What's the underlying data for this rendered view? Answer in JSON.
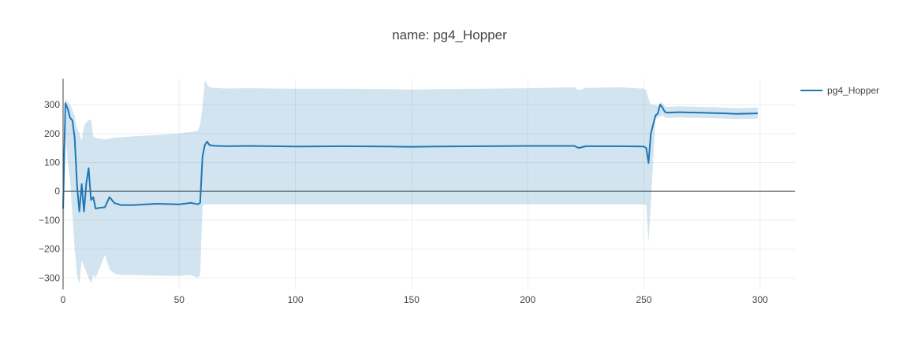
{
  "chart_data": {
    "type": "line",
    "title": "name: pg4_Hopper",
    "xlabel": "",
    "ylabel": "",
    "xlim": [
      0,
      315
    ],
    "ylim": [
      -340,
      390
    ],
    "xticks": [
      0,
      50,
      100,
      150,
      200,
      250,
      300
    ],
    "yticks": [
      -300,
      -200,
      -100,
      0,
      100,
      200,
      300
    ],
    "grid": true,
    "legend_position": "top-right",
    "colors": {
      "line": "#1f77b4",
      "band": "#1f77b4",
      "zero_line": "#444444"
    },
    "series": [
      {
        "name": "pg4_Hopper",
        "x": [
          0,
          1,
          2,
          3,
          4,
          5,
          6,
          7,
          8,
          9,
          10,
          11,
          12,
          13,
          14,
          15,
          18,
          20,
          22,
          25,
          30,
          40,
          50,
          55,
          58,
          59,
          60,
          61,
          62,
          63,
          65,
          70,
          80,
          90,
          100,
          120,
          140,
          150,
          160,
          180,
          200,
          220,
          222,
          225,
          240,
          250,
          251,
          252,
          253,
          255,
          256,
          257,
          258,
          259,
          260,
          265,
          270,
          275,
          280,
          285,
          290,
          295,
          299
        ],
        "y": [
          -60,
          305,
          285,
          255,
          245,
          185,
          20,
          -70,
          25,
          -70,
          30,
          80,
          -30,
          -20,
          -60,
          -58,
          -55,
          -20,
          -40,
          -48,
          -48,
          -43,
          -45,
          -40,
          -45,
          -40,
          120,
          160,
          172,
          160,
          158,
          156,
          157,
          156,
          155,
          156,
          155,
          154,
          155,
          156,
          157,
          157,
          150,
          156,
          156,
          155,
          150,
          98,
          200,
          262,
          270,
          300,
          290,
          275,
          272,
          274,
          273,
          272,
          271,
          270,
          268,
          269,
          270
        ],
        "upper": [
          60,
          320,
          310,
          300,
          280,
          260,
          220,
          200,
          175,
          225,
          240,
          245,
          250,
          190,
          185,
          183,
          180,
          182,
          185,
          188,
          190,
          195,
          200,
          205,
          210,
          230,
          290,
          385,
          370,
          360,
          358,
          356,
          357,
          356,
          355,
          355,
          354,
          352,
          354,
          355,
          357,
          360,
          350,
          358,
          360,
          355,
          350,
          320,
          300,
          300,
          295,
          310,
          305,
          295,
          292,
          294,
          293,
          292,
          291,
          290,
          288,
          289,
          290
        ],
        "lower": [
          -340,
          200,
          100,
          40,
          -80,
          -200,
          -290,
          -320,
          -240,
          -260,
          -280,
          -300,
          -320,
          -290,
          -300,
          -280,
          -220,
          -270,
          -285,
          -290,
          -290,
          -292,
          -293,
          -290,
          -300,
          -290,
          -50,
          -45,
          -45,
          -45,
          -45,
          -45,
          -45,
          -45,
          -45,
          -45,
          -45,
          -45,
          -45,
          -45,
          -45,
          -45,
          -45,
          -45,
          -45,
          -45,
          -48,
          -180,
          -40,
          250,
          255,
          260,
          262,
          256,
          254,
          256,
          255,
          254,
          253,
          252,
          250,
          251,
          252
        ]
      }
    ]
  }
}
